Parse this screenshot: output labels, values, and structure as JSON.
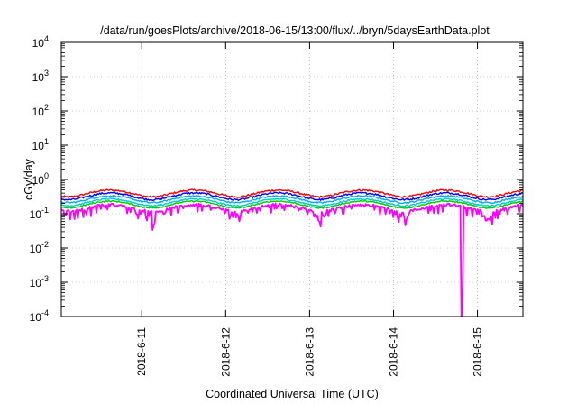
{
  "chart_data": {
    "type": "line",
    "title": "/data/run/goesPlots/archive/2018-06-15/13:00/flux/../bryn/5daysEarthData.plot",
    "xlabel": "Coordinated Universal Time (UTC)",
    "ylabel": "cGy/day",
    "yscale": "log",
    "ylim": [
      0.0001,
      10000
    ],
    "y_ticks": [
      {
        "base": "10",
        "exp": "-4",
        "value": 0.0001
      },
      {
        "base": "10",
        "exp": "-3",
        "value": 0.001
      },
      {
        "base": "10",
        "exp": "-2",
        "value": 0.01
      },
      {
        "base": "10",
        "exp": "-1",
        "value": 0.1
      },
      {
        "base": "10",
        "exp": "0",
        "value": 1
      },
      {
        "base": "10",
        "exp": "1",
        "value": 10
      },
      {
        "base": "10",
        "exp": "2",
        "value": 100
      },
      {
        "base": "10",
        "exp": "3",
        "value": 1000
      },
      {
        "base": "10",
        "exp": "4",
        "value": 10000
      }
    ],
    "xlim": [
      "2018-06-10 01:00",
      "2018-06-15 13:00"
    ],
    "x_ticks": [
      "2018-6-11",
      "2018-6-12",
      "2018-6-13",
      "2018-6-14",
      "2018-6-15"
    ],
    "grid": true,
    "series": [
      {
        "color": "#ff0000",
        "level": 0.4,
        "variation": 0.12,
        "dips": []
      },
      {
        "color": "#0000ff",
        "level": 0.33,
        "variation": 0.12,
        "dips": []
      },
      {
        "color": "#00aaff",
        "level": 0.27,
        "variation": 0.1,
        "dips": []
      },
      {
        "color": "#00cccc",
        "level": 0.22,
        "variation": 0.09,
        "dips": []
      },
      {
        "color": "#00cc00",
        "level": 0.19,
        "variation": 0.08,
        "dips": []
      },
      {
        "color": "#ff00ff",
        "level": 0.15,
        "variation": 0.18,
        "dips": [
          {
            "x": "2018-06-11 03:00",
            "min": 0.03
          },
          {
            "x": "2018-06-12 03:00",
            "min": 0.02
          },
          {
            "x": "2018-06-13 03:00",
            "min": 0.04
          },
          {
            "x": "2018-06-14 03:00",
            "min": 0.05
          },
          {
            "x": "2018-06-14 19:30",
            "min": 0.0001
          },
          {
            "x": "2018-06-15 03:00",
            "min": 0.05
          }
        ]
      }
    ]
  }
}
